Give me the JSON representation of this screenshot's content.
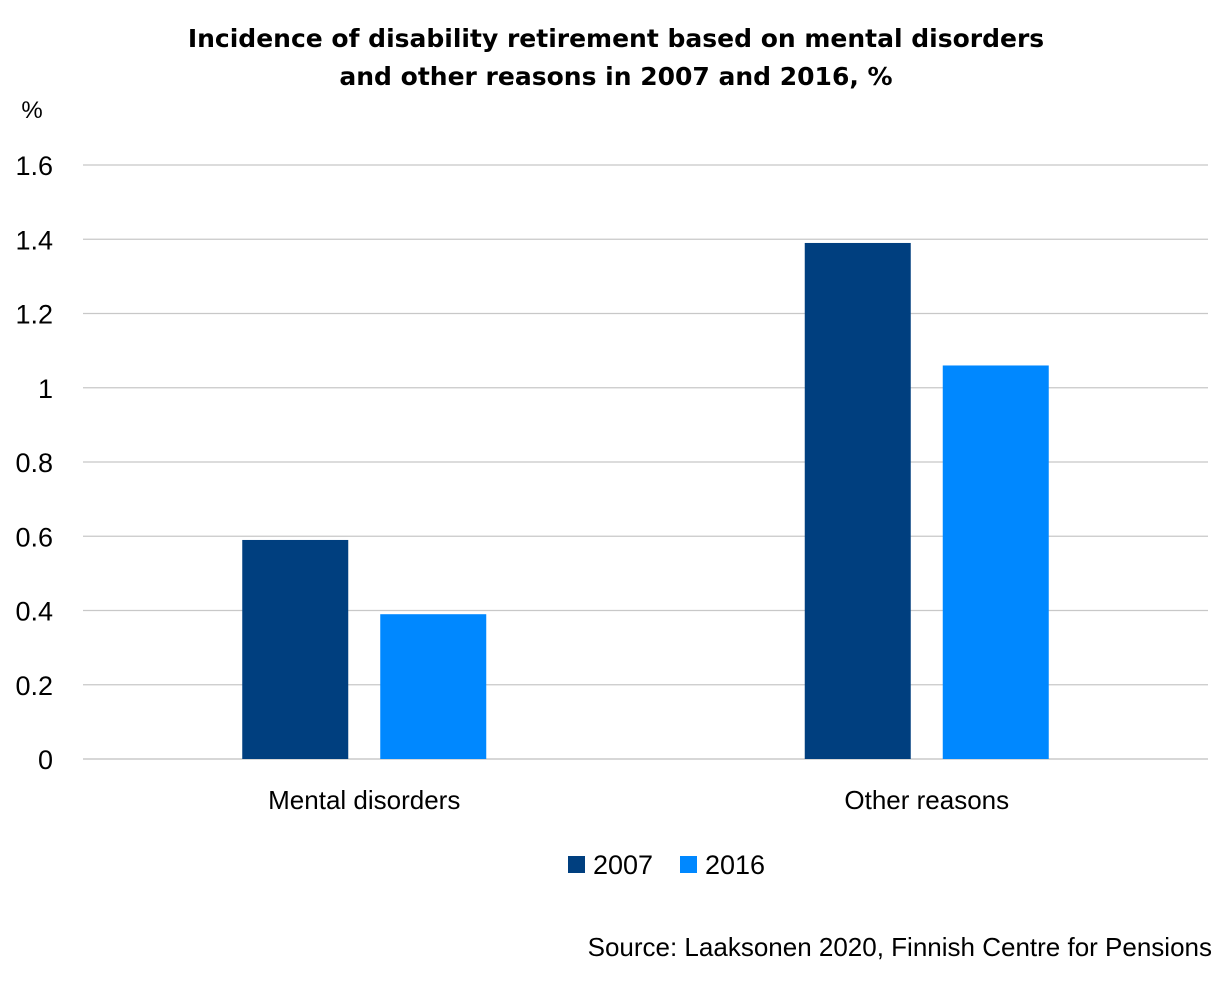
{
  "chart_data": {
    "type": "bar",
    "title_lines": [
      "Incidence of disability retirement based on mental disorders",
      "and other reasons in 2007 and 2016, %"
    ],
    "ylabel": "%",
    "xlabel": "",
    "categories": [
      "Mental disorders",
      "Other reasons"
    ],
    "series": [
      {
        "name": "2007",
        "color": "#003f7f",
        "values": [
          0.59,
          1.39
        ]
      },
      {
        "name": "2016",
        "color": "#0088ff",
        "values": [
          0.39,
          1.06
        ]
      }
    ],
    "ylim": [
      0,
      1.6
    ],
    "yticks": [
      "0",
      "0.2",
      "0.4",
      "0.6",
      "0.8",
      "1",
      "1.2",
      "1.4",
      "1.6"
    ],
    "grid": true,
    "legend_position": "bottom-center",
    "source": "Source: Laaksonen 2020, Finnish Centre for Pensions"
  }
}
